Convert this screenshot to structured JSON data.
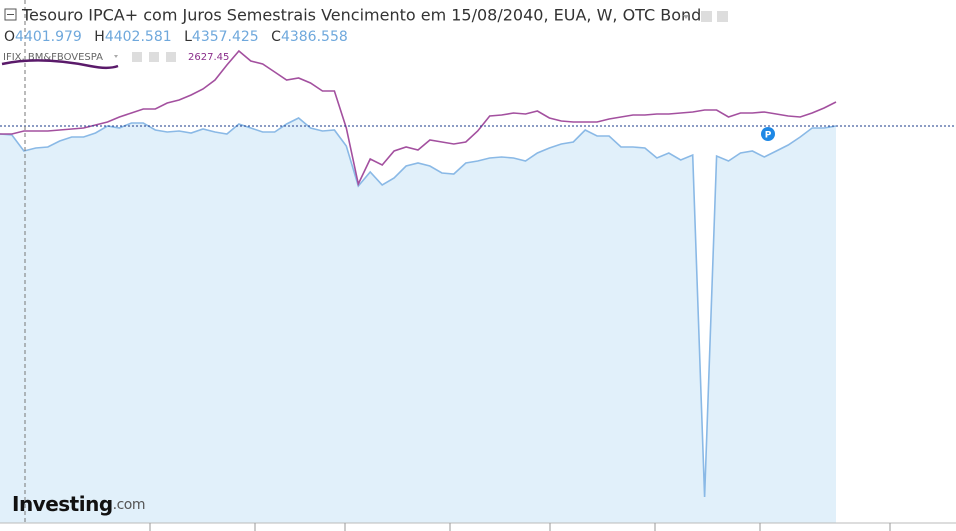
{
  "chart_data": {
    "type": "line",
    "title": "Tesouro IPCA+ com Juros Semestrais Vencimento em 15/08/2040, EUA, W, OTC Bonds",
    "ohlc": {
      "o_label": "O",
      "o": "4401.979",
      "h_label": "H",
      "h": "4402.581",
      "l_label": "L",
      "l": "4357.425",
      "c_label": "C",
      "c": "4386.558"
    },
    "marker": "P",
    "logo": {
      "main": "Investing",
      "suffix": ".com"
    },
    "ylim": [
      0,
      531
    ],
    "series": [
      {
        "color": "#8ab9e6",
        "fill": "#e1f0fa",
        "values": [
          397,
          396,
          380,
          383,
          384,
          390,
          394,
          394,
          398,
          405,
          403,
          408,
          408,
          401,
          399,
          400,
          398,
          402,
          399,
          397,
          407,
          403,
          399,
          399,
          407,
          413,
          403,
          400,
          401,
          385,
          345,
          359,
          346,
          353,
          365,
          368,
          365,
          358,
          357,
          368,
          370,
          373,
          374,
          373,
          370,
          378,
          383,
          387,
          389,
          401,
          395,
          395,
          384,
          384,
          383,
          373,
          378,
          371,
          376,
          34,
          375,
          370,
          378,
          380,
          374,
          380,
          386,
          394,
          403,
          403,
          405
        ]
      },
      {
        "name": "IFIX, BM&FBOVESPA",
        "color": "#a3509f",
        "last_label": "2627.45",
        "values": [
          397,
          397,
          400,
          400,
          400,
          401,
          402,
          403,
          406,
          409,
          414,
          418,
          422,
          422,
          428,
          431,
          436,
          442,
          451,
          466,
          480,
          470,
          467,
          459,
          451,
          453,
          448,
          440,
          440,
          403,
          347,
          372,
          366,
          380,
          384,
          381,
          391,
          389,
          387,
          389,
          400,
          415,
          416,
          418,
          417,
          420,
          413,
          410,
          409,
          409,
          409,
          412,
          414,
          416,
          416,
          417,
          417,
          418,
          419,
          421,
          421,
          414,
          418,
          418,
          419,
          417,
          415,
          414,
          418,
          423,
          429
        ]
      }
    ]
  }
}
